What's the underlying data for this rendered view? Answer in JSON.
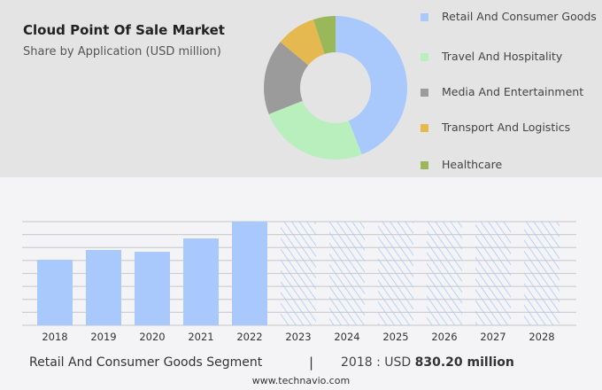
{
  "title": "Cloud Point Of Sale Market",
  "subtitle": "Share by Application (USD million)",
  "colors": {
    "blue": "#a9c9fd",
    "green": "#b8efbc",
    "grey": "#9b9b9b",
    "yellow": "#e6b850",
    "olive": "#9ab85a"
  },
  "chart_data": [
    {
      "type": "pie",
      "donut": true,
      "title": "Cloud Point Of Sale Market",
      "subtitle": "Share by Application (USD million)",
      "legend_position": "right",
      "slices": [
        {
          "name": "Retail And Consumer Goods",
          "value": 44,
          "color": "#a9c9fd"
        },
        {
          "name": "Travel And Hospitality",
          "value": 25,
          "color": "#b8efbc"
        },
        {
          "name": "Media And Entertainment",
          "value": 17,
          "color": "#9b9b9b"
        },
        {
          "name": "Transport And Logistics",
          "value": 9,
          "color": "#e6b850"
        },
        {
          "name": "Healthcare",
          "value": 5,
          "color": "#9ab85a"
        }
      ]
    },
    {
      "type": "bar",
      "categories": [
        "2018",
        "2019",
        "2020",
        "2021",
        "2022",
        "2023",
        "2024",
        "2025",
        "2026",
        "2027",
        "2028"
      ],
      "values": [
        830.2,
        954,
        931,
        1100,
        1313,
        null,
        null,
        null,
        null,
        null,
        null
      ],
      "forecast_categories": [
        "2023",
        "2024",
        "2025",
        "2026",
        "2027",
        "2028"
      ],
      "ylim": [
        0,
        1313
      ],
      "grid": true,
      "color": "#a9c9fd"
    }
  ],
  "footer": {
    "segment": "Retail And Consumer Goods Segment",
    "separator": "|",
    "year_label": "2018 : USD",
    "value": "830.20 million"
  },
  "site": "www.technavio.com"
}
